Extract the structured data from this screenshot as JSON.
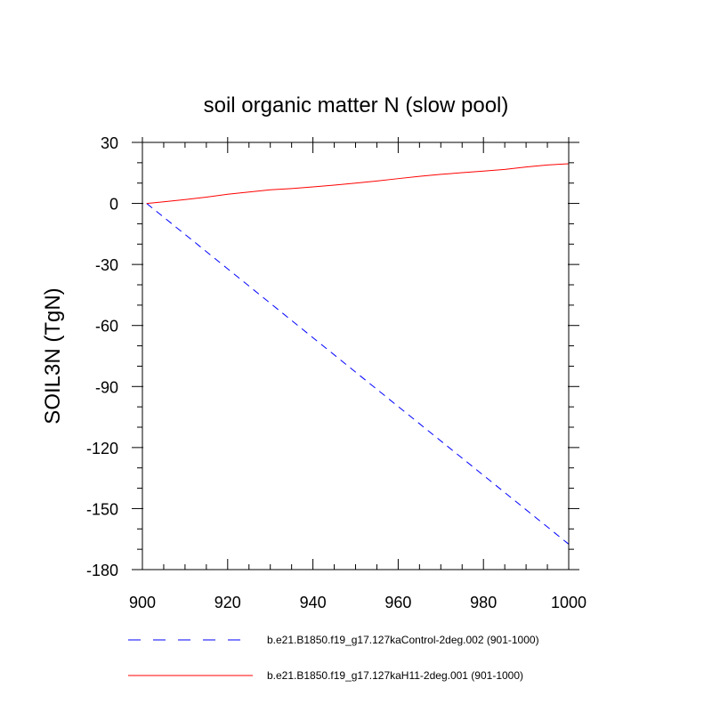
{
  "chart_data": {
    "type": "line",
    "title": "soil organic matter N (slow pool)",
    "xlabel": "",
    "ylabel": "SOIL3N  (TgN)",
    "xlim": [
      900,
      1000
    ],
    "ylim": [
      -180,
      30
    ],
    "xticks": [
      900,
      920,
      940,
      960,
      980,
      1000
    ],
    "yticks": [
      30,
      0,
      -30,
      -60,
      -90,
      -120,
      -150,
      -180
    ],
    "xtick_labels": [
      "900",
      "920",
      "940",
      "960",
      "980",
      "1000"
    ],
    "ytick_labels": [
      "30",
      "0",
      "-30",
      "-60",
      "-90",
      "-120",
      "-150",
      "-180"
    ],
    "grid": false,
    "legend_position": "bottom",
    "series": [
      {
        "name": "b.e21.B1850.f19_g17.127kaControl-2deg.002 (901-1000)",
        "color": "#0000ff",
        "style": "dashed",
        "x": [
          901,
          1000
        ],
        "y": [
          0,
          -167.5
        ]
      },
      {
        "name": "b.e21.B1850.f19_g17.127kaH11-2deg.001 (901-1000)",
        "color": "#ff0000",
        "style": "solid",
        "x": [
          901,
          905,
          910,
          915,
          920,
          925,
          930,
          935,
          940,
          945,
          950,
          955,
          960,
          965,
          970,
          975,
          980,
          985,
          990,
          995,
          1000
        ],
        "y": [
          0,
          0.8,
          1.9,
          3.1,
          4.5,
          5.6,
          6.7,
          7.3,
          8.1,
          9.0,
          10.0,
          11.0,
          12.2,
          13.3,
          14.3,
          15.1,
          15.9,
          16.7,
          17.9,
          18.9,
          19.5
        ]
      }
    ]
  }
}
